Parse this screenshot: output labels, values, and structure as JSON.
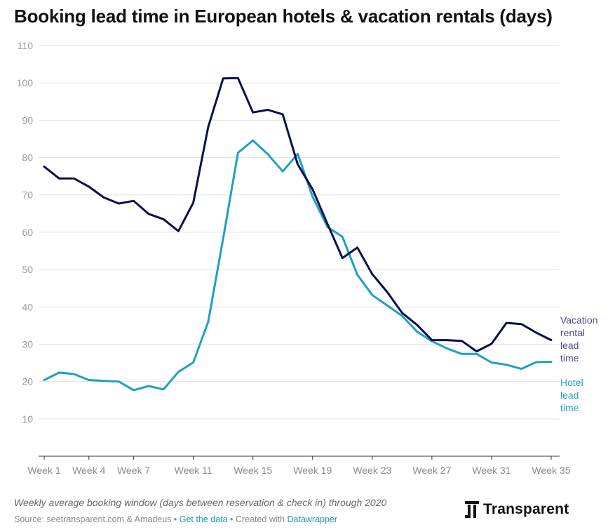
{
  "title": "Booking lead time in European hotels & vacation rentals (days)",
  "footer": {
    "description": "Weekly average booking window (days between reservation & check in) through 2020",
    "source_prefix": "Source: seetransparent.com & Amadeus • ",
    "get_data": "Get the data",
    "created_with": " • Created with ",
    "datawrapper": "Datawrapper"
  },
  "logo": {
    "text": "Transparent"
  },
  "colors": {
    "vacation": "#0b0f4f",
    "hotel": "#1f9fc4",
    "grid": "#e3e3e3",
    "axis": "#999999",
    "link": "#1a9cb0"
  },
  "chart_data": {
    "type": "line",
    "x_range": [
      1,
      35
    ],
    "x_ticks": [
      {
        "x": 1,
        "label": "Week 1"
      },
      {
        "x": 4,
        "label": "Week 4"
      },
      {
        "x": 7,
        "label": "Week 7"
      },
      {
        "x": 11,
        "label": "Week 11"
      },
      {
        "x": 15,
        "label": "Week 15"
      },
      {
        "x": 19,
        "label": "Week 19"
      },
      {
        "x": 23,
        "label": "Week 23"
      },
      {
        "x": 27,
        "label": "Week 27"
      },
      {
        "x": 31,
        "label": "Week 31"
      },
      {
        "x": 35,
        "label": "Week 35"
      }
    ],
    "ylim": [
      0,
      110
    ],
    "y_ticks": [
      10,
      20,
      30,
      40,
      50,
      60,
      70,
      80,
      90,
      100,
      110
    ],
    "grid": true,
    "series": [
      {
        "name": "Vacation rental lead time",
        "label_lines": [
          "Vacation",
          "rental",
          "lead",
          "time"
        ],
        "x": [
          1,
          2,
          3,
          4,
          5,
          6,
          7,
          8,
          9,
          10,
          11,
          12,
          13,
          14,
          15,
          16,
          17,
          18,
          19,
          20,
          21,
          22,
          23,
          24,
          25,
          26,
          27,
          28,
          29,
          30,
          31,
          32,
          33,
          34,
          35
        ],
        "values": [
          77.6,
          74.4,
          74.4,
          72.2,
          69.3,
          67.7,
          68.4,
          64.9,
          63.5,
          60.3,
          67.9,
          88.2,
          101.2,
          101.3,
          92.1,
          92.8,
          91.6,
          78.2,
          71.5,
          62.2,
          53.1,
          55.9,
          48.8,
          44.0,
          38.4,
          35.2,
          31.1,
          31.1,
          30.9,
          28.1,
          30.1,
          35.7,
          35.4,
          33.1,
          31.1
        ]
      },
      {
        "name": "Hotel lead time",
        "label_lines": [
          "Hotel",
          "lead",
          "time"
        ],
        "x": [
          1,
          2,
          3,
          4,
          5,
          6,
          7,
          8,
          9,
          10,
          11,
          12,
          13,
          14,
          15,
          16,
          17,
          18,
          19,
          20,
          21,
          22,
          23,
          24,
          25,
          26,
          27,
          28,
          29,
          30,
          31,
          32,
          33,
          34,
          35
        ],
        "values": [
          20.4,
          22.4,
          22.0,
          20.4,
          20.2,
          20.0,
          17.7,
          18.8,
          17.9,
          22.6,
          25.1,
          36.0,
          58.3,
          81.3,
          84.6,
          80.9,
          76.3,
          81.0,
          69.5,
          61.4,
          58.8,
          48.6,
          43.2,
          40.4,
          37.6,
          33.4,
          30.8,
          28.9,
          27.4,
          27.4,
          25.1,
          24.5,
          23.4,
          25.2,
          25.3
        ]
      }
    ]
  }
}
